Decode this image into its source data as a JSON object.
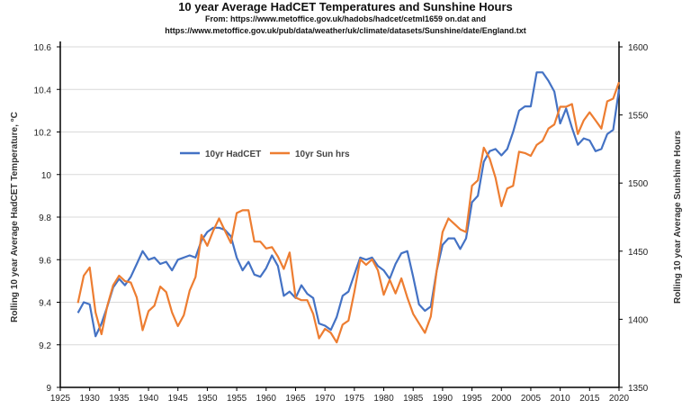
{
  "chart_data": {
    "type": "line",
    "title": "10 year Average HadCET Temperatures and Sunshine Hours",
    "subtitle_line1": "From: https://www.metoffice.gov.uk/hadobs/hadcet/cetml1659 on.dat     and",
    "subtitle_line2": "https://www.metoffice.gov.uk/pub/data/weather/uk/climate/datasets/Sunshine/date/England.txt",
    "ylabel": "Rolling 10 year Average HadCET Temperature, °C",
    "y2label": "Rolling 10 year Average Sunshine Hours",
    "xlim": [
      1925,
      2020
    ],
    "ylim": [
      9,
      10.6
    ],
    "y2lim": [
      1350,
      1600
    ],
    "xticks": [
      "1925",
      "1930",
      "1935",
      "1940",
      "1945",
      "1950",
      "1955",
      "1960",
      "1965",
      "1970",
      "1975",
      "1980",
      "1985",
      "1990",
      "1995",
      "2000",
      "2005",
      "2010",
      "2015",
      "2020"
    ],
    "yticks": [
      "9",
      "9.2",
      "9.4",
      "9.6",
      "9.8",
      "10",
      "10.2",
      "10.4",
      "10.6"
    ],
    "y2ticks": [
      "1350",
      "1400",
      "1450",
      "1500",
      "1550",
      "1600"
    ],
    "grid": true,
    "legend": "center-left",
    "x": [
      1928,
      1929,
      1930,
      1931,
      1932,
      1933,
      1934,
      1935,
      1936,
      1937,
      1938,
      1939,
      1940,
      1941,
      1942,
      1943,
      1944,
      1945,
      1946,
      1947,
      1948,
      1949,
      1950,
      1951,
      1952,
      1953,
      1954,
      1955,
      1956,
      1957,
      1958,
      1959,
      1960,
      1961,
      1962,
      1963,
      1964,
      1965,
      1966,
      1967,
      1968,
      1969,
      1970,
      1971,
      1972,
      1973,
      1974,
      1975,
      1976,
      1977,
      1978,
      1979,
      1980,
      1981,
      1982,
      1983,
      1984,
      1985,
      1986,
      1987,
      1988,
      1989,
      1990,
      1991,
      1992,
      1993,
      1994,
      1995,
      1996,
      1997,
      1998,
      1999,
      2000,
      2001,
      2002,
      2003,
      2004,
      2005,
      2006,
      2007,
      2008,
      2009,
      2010,
      2011,
      2012,
      2013,
      2014,
      2015,
      2016,
      2017,
      2018,
      2019,
      2020
    ],
    "series": [
      {
        "name": "10yr HadCET",
        "color": "#4472c4",
        "axis": "left",
        "values": [
          9.35,
          9.4,
          9.39,
          9.24,
          9.3,
          9.38,
          9.47,
          9.51,
          9.48,
          9.52,
          9.58,
          9.64,
          9.6,
          9.61,
          9.58,
          9.59,
          9.55,
          9.6,
          9.61,
          9.62,
          9.61,
          9.69,
          9.73,
          9.75,
          9.75,
          9.74,
          9.71,
          9.61,
          9.55,
          9.59,
          9.53,
          9.52,
          9.56,
          9.62,
          9.57,
          9.43,
          9.45,
          9.42,
          9.48,
          9.44,
          9.42,
          9.3,
          9.29,
          9.27,
          9.33,
          9.43,
          9.45,
          9.53,
          9.61,
          9.6,
          9.61,
          9.57,
          9.55,
          9.51,
          9.58,
          9.63,
          9.64,
          9.52,
          9.39,
          9.36,
          9.38,
          9.55,
          9.67,
          9.7,
          9.7,
          9.65,
          9.7,
          9.87,
          9.9,
          10.06,
          10.11,
          10.12,
          10.09,
          10.12,
          10.2,
          10.3,
          10.32,
          10.32,
          10.48,
          10.48,
          10.44,
          10.39,
          10.24,
          10.31,
          10.22,
          10.14,
          10.17,
          10.16,
          10.11,
          10.12,
          10.19,
          10.21,
          10.4
        ]
      },
      {
        "name": "10yr Sun hrs",
        "color": "#ed7d31",
        "axis": "right",
        "values": [
          1412,
          1432,
          1438,
          1405,
          1389,
          1410,
          1425,
          1432,
          1428,
          1427,
          1416,
          1392,
          1406,
          1410,
          1424,
          1420,
          1405,
          1395,
          1403,
          1421,
          1431,
          1462,
          1454,
          1465,
          1474,
          1465,
          1456,
          1478,
          1480,
          1480,
          1457,
          1457,
          1452,
          1453,
          1446,
          1437,
          1449,
          1416,
          1414,
          1414,
          1404,
          1386,
          1393,
          1390,
          1383,
          1396,
          1399,
          1420,
          1444,
          1440,
          1444,
          1436,
          1418,
          1429,
          1419,
          1430,
          1416,
          1404,
          1397,
          1390,
          1402,
          1436,
          1464,
          1474,
          1470,
          1466,
          1464,
          1498,
          1502,
          1526,
          1518,
          1504,
          1483,
          1496,
          1498,
          1523,
          1522,
          1520,
          1528,
          1531,
          1540,
          1543,
          1556,
          1556,
          1558,
          1536,
          1546,
          1552,
          1546,
          1540,
          1560,
          1562,
          1574
        ]
      }
    ]
  }
}
